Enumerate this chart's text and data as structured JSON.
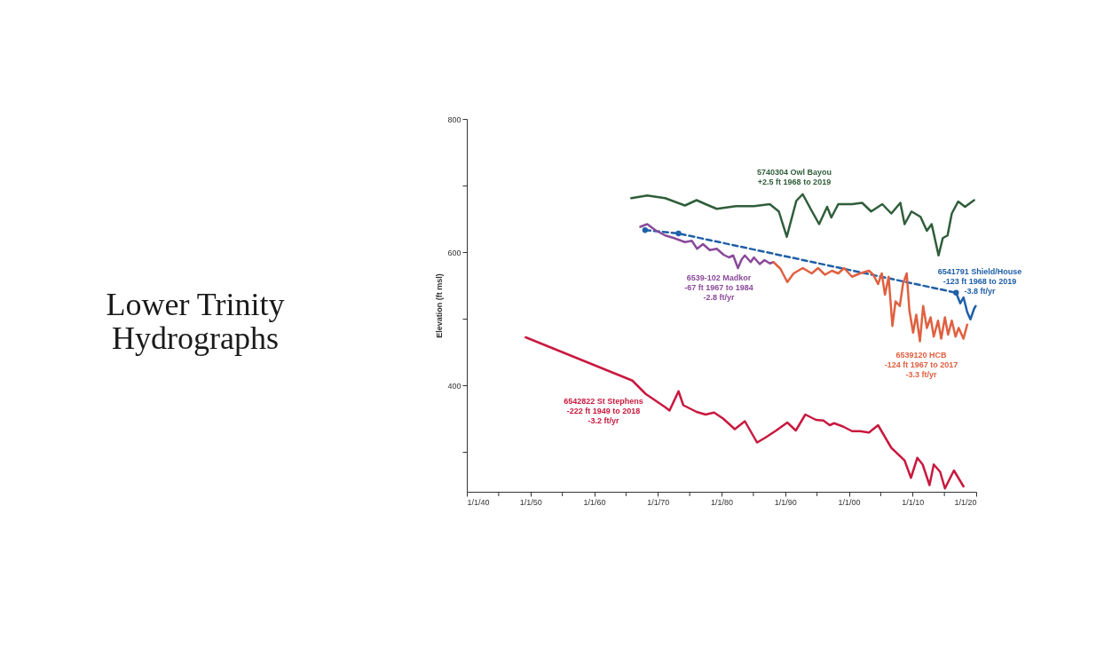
{
  "chart_data": {
    "type": "line",
    "title": "Lower Trinity Hydrographs",
    "ylabel": "Elevation (ft msl)",
    "xlim": [
      "1940",
      "2020"
    ],
    "ylim": [
      240,
      800
    ],
    "xticks": [
      {
        "value": "1940",
        "label": "1/1/40"
      },
      {
        "value": "1945",
        "label": null
      },
      {
        "value": "1950",
        "label": "1/1/50"
      },
      {
        "value": "1955",
        "label": null
      },
      {
        "value": "1960",
        "label": "1/1/60"
      },
      {
        "value": "1965",
        "label": null
      },
      {
        "value": "1970",
        "label": "1/1/70"
      },
      {
        "value": "1975",
        "label": null
      },
      {
        "value": "1980",
        "label": "1/1/80"
      },
      {
        "value": "1985",
        "label": null
      },
      {
        "value": "1990",
        "label": "1/1/90"
      },
      {
        "value": "1995",
        "label": null
      },
      {
        "value": "2000",
        "label": "1/1/00"
      },
      {
        "value": "2005",
        "label": null
      },
      {
        "value": "2010",
        "label": "1/1/10"
      },
      {
        "value": "2015",
        "label": null
      },
      {
        "value": "2020",
        "label": "1/1/20"
      }
    ],
    "yticks": [
      {
        "value": 300,
        "label": null
      },
      400,
      {
        "value": 500,
        "label": null
      },
      600,
      {
        "value": 700,
        "label": null
      },
      800
    ],
    "grid": false,
    "legend": false,
    "series": [
      {
        "name": "5740304 Owl Bayou\n+2.5 ft 1968 to 2019",
        "color": "#2f5e3a",
        "line_style": "solid",
        "marker": "none",
        "x": [
          "1965-11",
          "1968-05",
          "1971-03",
          "1974-04",
          "1976-02",
          "1977-07",
          "1979-04",
          "1982-04",
          "1985-02",
          "1987-08",
          "1989-01",
          "1990-04",
          "1991-10",
          "1992-10",
          "1994-03",
          "1995-05",
          "1996-08",
          "1997-04",
          "1998-05",
          "2000-07",
          "2002-02",
          "2003-07",
          "2005-04",
          "2006-09",
          "2008-02",
          "2008-10",
          "2009-11",
          "2011-04",
          "2012-04",
          "2013-01",
          "2014-02",
          "2014-10",
          "2015-07",
          "2016-03",
          "2017-03",
          "2018-04",
          "2019-09"
        ],
        "values": [
          681,
          685,
          681,
          670,
          678,
          672,
          665,
          669,
          669,
          672,
          661,
          623,
          677,
          687,
          662,
          642,
          668,
          652,
          672,
          672,
          674,
          661,
          672,
          658,
          674,
          642,
          661,
          653,
          632,
          642,
          595,
          621,
          625,
          658,
          676,
          668,
          678
        ]
      },
      {
        "color": "#1f5fa8",
        "line_style": "dashed",
        "marker": "circle",
        "x": [
          "1968-01",
          "1973-04",
          "2016-11"
        ],
        "values": [
          633,
          628,
          539
        ]
      },
      {
        "name": "6541791 Shield/House\n-123 ft 1968 to 2019\n-3.8 ft/yr",
        "color": "#1f5fa8",
        "line_style": "solid",
        "marker": "none",
        "x": [
          "2016-11",
          "2017-07",
          "2018-01",
          "2018-08",
          "2019-02",
          "2019-09",
          "2019-12"
        ],
        "values": [
          539,
          523,
          532,
          510,
          499,
          515,
          519
        ]
      },
      {
        "name": "6539-102 Madkor\n-67 ft 1967 to 1984\n-2.8 ft/yr",
        "color": "#8a4a9a",
        "line_style": "solid",
        "marker": "none",
        "x": [
          "1967-04",
          "1968-05",
          "1969-10",
          "1971-03",
          "1972-08",
          "1974-04",
          "1975-05",
          "1976-03",
          "1977-02",
          "1978-03",
          "1979-04",
          "1980-05",
          "1981-03",
          "1981-11",
          "1982-08",
          "1983-03",
          "1983-09",
          "1984-08",
          "1985-02",
          "1986-01",
          "1986-10",
          "1987-08",
          "1988-03"
        ],
        "values": [
          638,
          642,
          632,
          625,
          621,
          615,
          617,
          605,
          612,
          603,
          605,
          596,
          592,
          595,
          576,
          589,
          595,
          585,
          592,
          582,
          588,
          583,
          585
        ]
      },
      {
        "name": "6539120 HCB\n-124 ft 1967 to 2017\n-3.3 ft/yr",
        "color": "#e06040",
        "line_style": "solid",
        "marker": "none",
        "x": [
          "1988-03",
          "1989-04",
          "1990-05",
          "1991-05",
          "1992-10",
          "1994-03",
          "1995-03",
          "1996-04",
          "1997-05",
          "1998-05",
          "1999-04",
          "2000-07",
          "2001-10",
          "2003-03",
          "2003-11",
          "2004-08",
          "2005-03",
          "2005-09",
          "2006-04",
          "2006-11",
          "2007-05",
          "2008-01",
          "2008-07",
          "2009-02",
          "2009-07",
          "2010-02",
          "2010-08",
          "2011-03",
          "2011-09",
          "2012-04",
          "2012-11",
          "2013-05",
          "2014-01",
          "2014-07",
          "2015-02",
          "2015-08",
          "2016-03",
          "2016-10",
          "2017-04",
          "2018-01",
          "2018-08"
        ],
        "values": [
          585,
          575,
          555,
          568,
          576,
          568,
          576,
          566,
          572,
          568,
          576,
          563,
          568,
          572,
          566,
          552,
          568,
          536,
          563,
          489,
          526,
          519,
          552,
          568,
          513,
          479,
          506,
          466,
          519,
          486,
          502,
          473,
          497,
          470,
          502,
          476,
          497,
          473,
          486,
          470,
          491
        ]
      },
      {
        "name": "6542822 St Stephens\n-222 ft 1949 to 2018\n-3.2 ft/yr",
        "color": "#c8193f",
        "line_style": "solid",
        "marker": "none",
        "x": [
          "1949-04",
          "1966-01",
          "1968-02",
          "1971-03",
          "1971-11",
          "1973-04",
          "1974-01",
          "1976-02",
          "1977-07",
          "1978-11",
          "1980-04",
          "1982-02",
          "1983-09",
          "1985-08",
          "1986-11",
          "1988-08",
          "1990-05",
          "1991-09",
          "1993-03",
          "1994-11",
          "1996-01",
          "1997-01",
          "1997-09",
          "1999-02",
          "2000-07",
          "2001-10",
          "2003-03",
          "2004-08",
          "2006-09",
          "2008-10",
          "2009-10",
          "2010-10",
          "2011-08",
          "2012-09",
          "2013-05",
          "2014-05",
          "2015-02",
          "2016-07",
          "2018-01"
        ],
        "values": [
          472,
          407,
          387,
          367,
          362,
          391,
          370,
          360,
          356,
          359,
          350,
          334,
          346,
          314,
          321,
          332,
          344,
          332,
          356,
          348,
          347,
          340,
          343,
          338,
          331,
          331,
          329,
          340,
          306,
          287,
          261,
          291,
          281,
          250,
          281,
          270,
          245,
          272,
          248
        ]
      }
    ]
  }
}
